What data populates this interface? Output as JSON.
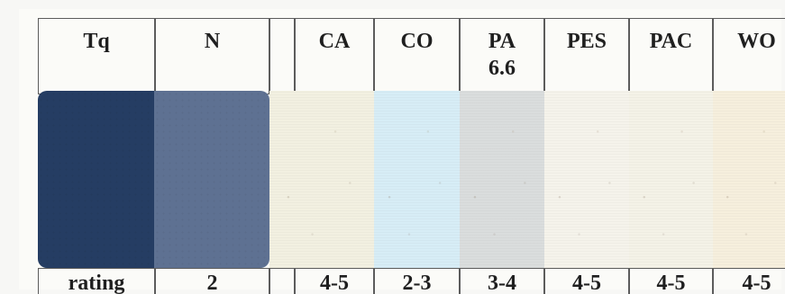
{
  "headers": {
    "tq": "Tq",
    "n": "N",
    "blank": "",
    "ca": "CA",
    "co": "CO",
    "pa": "PA\n6.6",
    "pes": "PES",
    "pac": "PAC",
    "wo": "WO"
  },
  "ratings": {
    "label": "rating",
    "n": "2",
    "blank": "",
    "ca": "4-5",
    "co": "2-3",
    "pa": "3-4",
    "pes": "4-5",
    "pac": "4-5",
    "wo": "4-5"
  },
  "colors": {
    "tq": "#253d63",
    "n": "#5e7192",
    "ca": "#f2f0e1",
    "co": "#d7edf6",
    "pa": "#dadddd",
    "pes": "#f5f3eb",
    "pac": "#f4f2e7",
    "wo": "#f6efdd",
    "border": "#5c5c5c",
    "background": "#fbfbf8"
  }
}
